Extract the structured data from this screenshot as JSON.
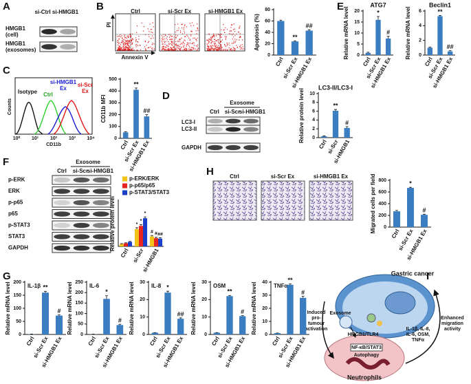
{
  "panel_labels": [
    "A",
    "B",
    "C",
    "D",
    "E",
    "F",
    "G",
    "H",
    "I"
  ],
  "panel_a": {
    "lanes": [
      "si-Ctrl",
      "si-HMGB1"
    ],
    "rows": [
      [
        "HMGB1",
        "(cell)"
      ],
      [
        "HMGB1",
        "(exosomes)"
      ]
    ]
  },
  "panel_b_flow": {
    "plots": [
      "Ctrl",
      "si-Scr Ex",
      "si-HMGB1  Ex"
    ],
    "y_label": "PI",
    "x_label": "Annexin V"
  },
  "panel_c_histogram": {
    "labels": [
      "Isotype",
      "Ctrl",
      "si-HMGB1",
      "Ex",
      "si-Scr",
      "Ex"
    ],
    "y_label": "Counts",
    "x_label": "CD11b",
    "x_ticks": [
      "10⁰",
      "10¹",
      "10²",
      "10³",
      "10⁴"
    ]
  },
  "panel_d_blot": {
    "group": "Exosome",
    "lanes": [
      "Ctrl",
      "si-Scr",
      "si-HMGB1"
    ],
    "rows": [
      "LC3-I",
      "LC3-II",
      "GAPDH"
    ]
  },
  "panel_f_blot": {
    "group": "Exosome",
    "lanes": [
      "Ctrl",
      "si-Scr",
      "si-HMGB1"
    ],
    "rows": [
      "p-ERK",
      "ERK",
      "p-p65",
      "p65",
      "p-STAT3",
      "STAT3",
      "GAPDH"
    ]
  },
  "panel_h_images": {
    "labels": [
      "Ctrl",
      "si-Scr Ex",
      "si-HMGB1  Ex"
    ]
  },
  "panel_i_diagram": {
    "top": "Gastric cancer",
    "bottom": "Neutrophils",
    "exosome": "Exosome",
    "receptor": "HMGB1/TLR4",
    "pathway": "NF-κB/STAT3",
    "autophagy": "Autophagy",
    "left": [
      "Induced",
      "pro-",
      "tumour",
      "activation"
    ],
    "right": [
      "Enhanced",
      "migration",
      "activity"
    ],
    "factors": [
      "IL-1β, IL-8,",
      "IL-6, OSM,",
      "TNFα"
    ]
  },
  "chart_data": [
    {
      "type": "bar",
      "y_label": "Apoptosis (%)",
      "categories": [
        "Ctrl",
        "si-Scr Ex",
        "si-HMGB1 Ex"
      ],
      "values": [
        60,
        24,
        43
      ],
      "errors": [
        1.5,
        1,
        1.5
      ],
      "annotations": [
        null,
        "**",
        "##"
      ],
      "color": "#3a7dc1",
      "ylim": [
        0,
        80
      ],
      "yticks": [
        0,
        20,
        40,
        60,
        80
      ]
    },
    {
      "type": "bar",
      "title": "ATG7",
      "y_label": "Relative mRNA level",
      "categories": [
        "Ctrl",
        "si-Scr Ex",
        "si-HMGB1 Ex"
      ],
      "values": [
        1,
        16,
        7.5
      ],
      "errors": [
        0.3,
        1.5,
        1
      ],
      "annotations": [
        null,
        "*",
        "#"
      ],
      "color": "#3a7dc1",
      "ylim": [
        0,
        20
      ],
      "yticks": [
        0,
        5,
        10,
        15,
        20
      ]
    },
    {
      "type": "bar",
      "title": "Beclin1",
      "y_label": "Relative mRNA level",
      "categories": [
        "Ctrl",
        "si-Scr Ex",
        "si-HMGB1 Ex"
      ],
      "values": [
        1,
        5.3,
        0.5
      ],
      "errors": [
        0.1,
        0.1,
        0.1
      ],
      "annotations": [
        null,
        "**",
        "##"
      ],
      "color": "#3a7dc1",
      "ylim": [
        0,
        6
      ],
      "yticks": [
        0,
        2,
        4,
        6
      ]
    },
    {
      "type": "bar",
      "y_label": "CD11b MFI",
      "categories": [
        "Ctrl",
        "si-Scr Ex",
        "si-HMGB1 Ex"
      ],
      "values": [
        50,
        410,
        185
      ],
      "errors": [
        5,
        15,
        15
      ],
      "annotations": [
        null,
        "**",
        "##"
      ],
      "color": "#3a7dc1",
      "ylim": [
        0,
        500
      ],
      "yticks": [
        0,
        100,
        200,
        300,
        400,
        500
      ]
    },
    {
      "type": "bar",
      "title": "LC3-II/LC3-I",
      "y_label": "Relative protein level",
      "categories": [
        "Ctrl",
        "si-Scr",
        "si-HMGB1"
      ],
      "values": [
        0.3,
        6.1,
        2.2
      ],
      "errors": [
        0.1,
        0.3,
        0.3
      ],
      "annotations": [
        null,
        "**",
        "#"
      ],
      "color": "#3a7dc1",
      "ylim": [
        0,
        10
      ],
      "yticks": [
        0,
        2,
        4,
        6,
        8,
        10
      ]
    },
    {
      "type": "bar",
      "y_label": "Relative protein level",
      "categories": [
        "Ctrl",
        "si-Scr",
        "si-HMGB1"
      ],
      "ylim": [
        0,
        1
      ],
      "legend": "upper left",
      "series": [
        {
          "name": "p-ERK/ERK",
          "color": "#f2c218",
          "values": [
            0.05,
            0.38,
            0.22
          ],
          "errors": [
            0.01,
            0.03,
            0.02
          ],
          "annotations": [
            null,
            "*",
            "#"
          ]
        },
        {
          "name": "p-p65/p65",
          "color": "#e8251f",
          "values": [
            0.07,
            0.45,
            0.18
          ],
          "errors": [
            0.01,
            0.03,
            0.02
          ],
          "annotations": [
            null,
            "*",
            "#"
          ]
        },
        {
          "name": "p-STAT3/STAT3",
          "color": "#1a3fc8",
          "values": [
            0.1,
            0.62,
            0.17
          ],
          "errors": [
            0.01,
            0.03,
            0.02
          ],
          "annotations": [
            null,
            "*",
            "##"
          ]
        }
      ]
    },
    {
      "type": "bar",
      "y_label": "Migrated cells per field",
      "categories": [
        "Ctrl",
        "si-Scr Ex",
        "si-HMGB1 Ex"
      ],
      "values": [
        270,
        670,
        210
      ],
      "errors": [
        15,
        10,
        10
      ],
      "annotations": [
        null,
        "*",
        "#"
      ],
      "color": "#3a7dc1",
      "ylim": [
        0,
        800
      ],
      "yticks": [
        0,
        200,
        400,
        600,
        800
      ]
    },
    {
      "type": "bar",
      "title": "IL-1β",
      "y_label": "Relative mRNA level",
      "categories": [
        "Ctrl",
        "si-Scr Ex",
        "si-HMGB1 Ex"
      ],
      "values": [
        1,
        160,
        72
      ],
      "errors": [
        0.5,
        5,
        3
      ],
      "annotations": [
        null,
        "**",
        "#"
      ],
      "color": "#3a7dc1",
      "ylim": [
        0,
        200
      ],
      "yticks": [
        0,
        50,
        100,
        150,
        200
      ]
    },
    {
      "type": "bar",
      "title": "IL-6",
      "y_label": "Relative mRNA level",
      "categories": [
        "Ctrl",
        "si-Scr Ex",
        "si-HMGB1 Ex"
      ],
      "values": [
        1,
        170,
        45
      ],
      "errors": [
        0.5,
        15,
        4
      ],
      "annotations": [
        null,
        "*",
        "#"
      ],
      "color": "#3a7dc1",
      "ylim": [
        0,
        250
      ],
      "yticks": [
        0,
        50,
        100,
        150,
        200,
        250
      ]
    },
    {
      "type": "bar",
      "title": "IL-8",
      "y_label": "Relative mRNA level",
      "categories": [
        "Ctrl",
        "si-Scr Ex",
        "si-HMGB1 Ex"
      ],
      "values": [
        1,
        24,
        9
      ],
      "errors": [
        0.1,
        0.8,
        0.5
      ],
      "annotations": [
        null,
        "*",
        "##"
      ],
      "color": "#3a7dc1",
      "ylim": [
        0,
        30
      ],
      "yticks": [
        0,
        10,
        20,
        30
      ]
    },
    {
      "type": "bar",
      "title": "OSM",
      "y_label": "Relative mRNA level",
      "categories": [
        "Ctrl",
        "si-Scr Ex",
        "si-HMGB1 Ex"
      ],
      "values": [
        1,
        22,
        10.5
      ],
      "errors": [
        0.1,
        0.4,
        0.3
      ],
      "annotations": [
        null,
        "**",
        "#"
      ],
      "color": "#3a7dc1",
      "ylim": [
        0,
        30
      ],
      "yticks": [
        0,
        10,
        20,
        30
      ]
    },
    {
      "type": "bar",
      "title": "TNFα",
      "y_label": "Relative mRNA level",
      "categories": [
        "Ctrl",
        "si-Scr Ex",
        "si-HMGB1 Ex"
      ],
      "values": [
        1,
        38,
        28
      ],
      "errors": [
        0.1,
        0.6,
        1.2
      ],
      "annotations": [
        null,
        "**",
        "#"
      ],
      "color": "#3a7dc1",
      "ylim": [
        0,
        40
      ],
      "yticks": [
        0,
        10,
        20,
        30,
        40
      ]
    }
  ]
}
